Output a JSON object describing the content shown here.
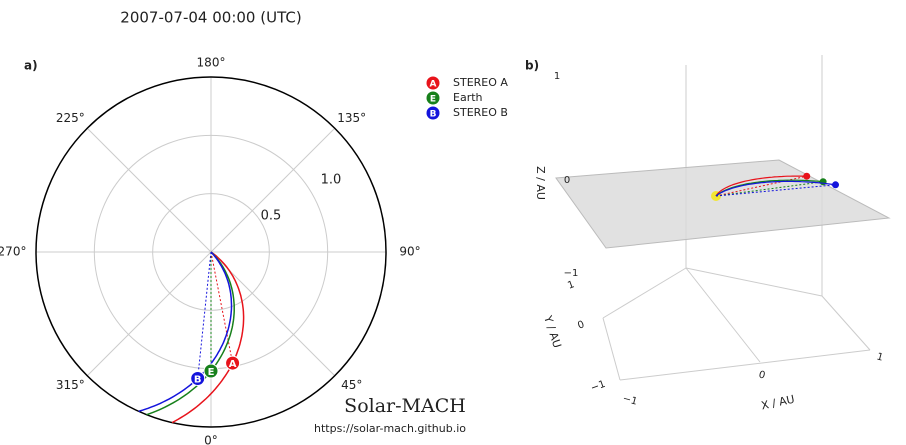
{
  "chart_data": [
    {
      "type": "polar",
      "title": "2007-07-04 00:00 (UTC)",
      "panel_label": "a)",
      "rlim": [
        0,
        1.5
      ],
      "rticks": [
        0.5,
        {
          "value": 1,
          "label": "1.0"
        }
      ],
      "thetaticks": [
        {
          "value": 0,
          "label": "0°"
        },
        {
          "value": 45,
          "label": "45°"
        },
        {
          "value": 90,
          "label": "90°"
        },
        {
          "value": 135,
          "label": "135°"
        },
        {
          "value": 180,
          "label": "180°"
        },
        {
          "value": 225,
          "label": "225°"
        },
        {
          "value": 270,
          "label": "270°"
        },
        {
          "value": 315,
          "label": "315°"
        }
      ],
      "series": [
        {
          "name": "STEREO A",
          "symbol": "A",
          "color": "#e8131b",
          "r": 0.97,
          "lon": 11
        },
        {
          "name": "Earth",
          "symbol": "E",
          "color": "#17801b",
          "r": 1.02,
          "lon": 0
        },
        {
          "name": "STEREO B",
          "symbol": "B",
          "color": "#1414dc",
          "r": 1.09,
          "lon": -6
        }
      ],
      "brand": "Solar-MACH",
      "url": "https://solar-mach.github.io"
    },
    {
      "type": "scatter3d",
      "panel_label": "b)",
      "xlabel": "X / AU",
      "ylabel": "Y / AU",
      "zlabel": "Z / AU",
      "xticks": [
        {
          "value": -1,
          "label": "−1"
        },
        0,
        1
      ],
      "yticks": [
        {
          "value": -1,
          "label": "−1"
        },
        0,
        1
      ],
      "zticks": [
        {
          "value": -1,
          "label": "−1"
        },
        0,
        1
      ]
    }
  ]
}
